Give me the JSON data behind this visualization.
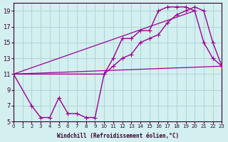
{
  "xlabel": "Windchill (Refroidissement éolien,°C)",
  "background_color": "#d4efef",
  "grid_color": "#b0d8d8",
  "line_color": "#990099",
  "xmin": 0,
  "xmax": 23,
  "ymin": 5,
  "ymax": 20,
  "yticks": [
    5,
    7,
    9,
    11,
    13,
    15,
    17,
    19
  ],
  "xticks": [
    0,
    1,
    2,
    3,
    4,
    5,
    6,
    7,
    8,
    9,
    10,
    11,
    12,
    13,
    14,
    15,
    16,
    17,
    18,
    19,
    20,
    21,
    22,
    23
  ],
  "line1_x": [
    0,
    2,
    3,
    4,
    5,
    6,
    7,
    8,
    9,
    10,
    11,
    12,
    13,
    14,
    15,
    16,
    17,
    18,
    19,
    20,
    21,
    22,
    23
  ],
  "line1_y": [
    11,
    7,
    5.5,
    5.5,
    8,
    6,
    6,
    5.5,
    5.5,
    11,
    13,
    15.5,
    15.5,
    16.5,
    16.5,
    19,
    19.5,
    19.5,
    19.5,
    19,
    15,
    13,
    12
  ],
  "line2_x": [
    0,
    10,
    11,
    12,
    13,
    14,
    15,
    16,
    17,
    18,
    19,
    20,
    21,
    22,
    23
  ],
  "line2_y": [
    11,
    11,
    12,
    13,
    13.5,
    15,
    15.5,
    16,
    17.5,
    18.5,
    19,
    19.5,
    19,
    15,
    12
  ],
  "line3_x": [
    0,
    23
  ],
  "line3_y": [
    11,
    12
  ],
  "line4_x": [
    0,
    20
  ],
  "line4_y": [
    11,
    19
  ]
}
